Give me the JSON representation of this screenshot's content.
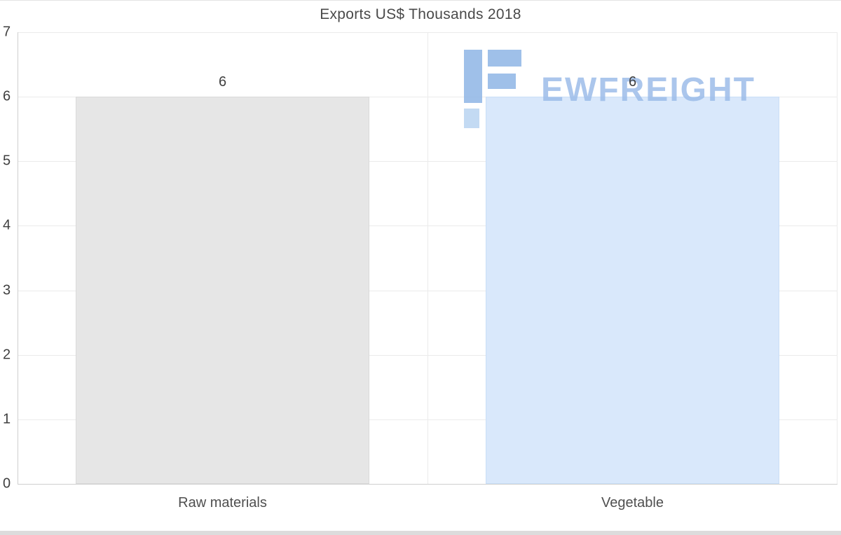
{
  "chart_data": {
    "type": "bar",
    "title": "Exports US$ Thousands 2018",
    "categories": [
      "Raw materials",
      "Vegetable"
    ],
    "values": [
      6,
      6
    ],
    "data_labels": [
      "6",
      "6"
    ],
    "bar_colors": [
      "#e6e6e6",
      "#d9e8fb"
    ],
    "bar_border_colors": [
      "#dadada",
      "#c9def7"
    ],
    "xlabel": "",
    "ylabel": "",
    "ylim": [
      0,
      7
    ],
    "yticks": [
      0,
      1,
      2,
      3,
      4,
      5,
      6,
      7
    ],
    "grid": true,
    "legend_position": "none"
  },
  "watermark": {
    "text": "EWFREIGHT",
    "color": "#9dbde9",
    "icon": "ewfreight-logo-icon"
  }
}
